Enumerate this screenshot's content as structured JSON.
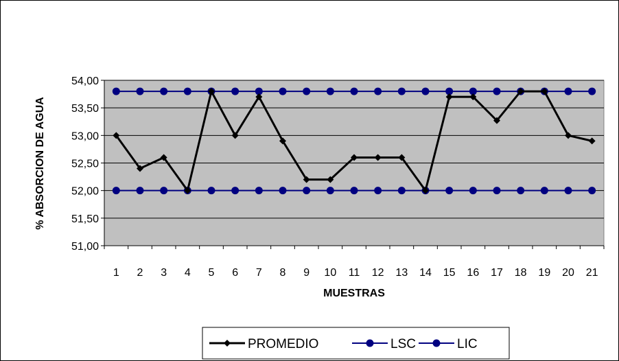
{
  "chart_data": {
    "type": "line",
    "title": "",
    "xlabel": "MUESTRAS",
    "ylabel": "% ABSORCION  DE AGUA",
    "ylim": [
      51.0,
      54.0
    ],
    "yticks": [
      "51,00",
      "51,50",
      "52,00",
      "52,50",
      "53,00",
      "53,50",
      "54,00"
    ],
    "ytick_values": [
      51.0,
      51.5,
      52.0,
      52.5,
      53.0,
      53.5,
      54.0
    ],
    "categories": [
      "1",
      "2",
      "3",
      "4",
      "5",
      "6",
      "7",
      "8",
      "9",
      "10",
      "11",
      "12",
      "13",
      "14",
      "15",
      "16",
      "17",
      "18",
      "19",
      "20",
      "21"
    ],
    "grid": true,
    "plot_background": "#c0c0c0",
    "legend_position": "bottom",
    "series": [
      {
        "name": "PROMEDIO",
        "color": "#000000",
        "marker": "diamond",
        "values": [
          53.0,
          52.4,
          52.6,
          52.0,
          53.8,
          53.0,
          53.7,
          52.9,
          52.2,
          52.2,
          52.6,
          52.6,
          52.6,
          52.0,
          53.7,
          53.7,
          53.27,
          53.8,
          53.8,
          53.0,
          52.9
        ]
      },
      {
        "name": "LSC",
        "color": "#000080",
        "marker": "circle",
        "values": [
          53.8,
          53.8,
          53.8,
          53.8,
          53.8,
          53.8,
          53.8,
          53.8,
          53.8,
          53.8,
          53.8,
          53.8,
          53.8,
          53.8,
          53.8,
          53.8,
          53.8,
          53.8,
          53.8,
          53.8,
          53.8
        ]
      },
      {
        "name": "LIC",
        "color": "#000080",
        "marker": "circle",
        "values": [
          52.0,
          52.0,
          52.0,
          52.0,
          52.0,
          52.0,
          52.0,
          52.0,
          52.0,
          52.0,
          52.0,
          52.0,
          52.0,
          52.0,
          52.0,
          52.0,
          52.0,
          52.0,
          52.0,
          52.0,
          52.0
        ]
      }
    ]
  }
}
